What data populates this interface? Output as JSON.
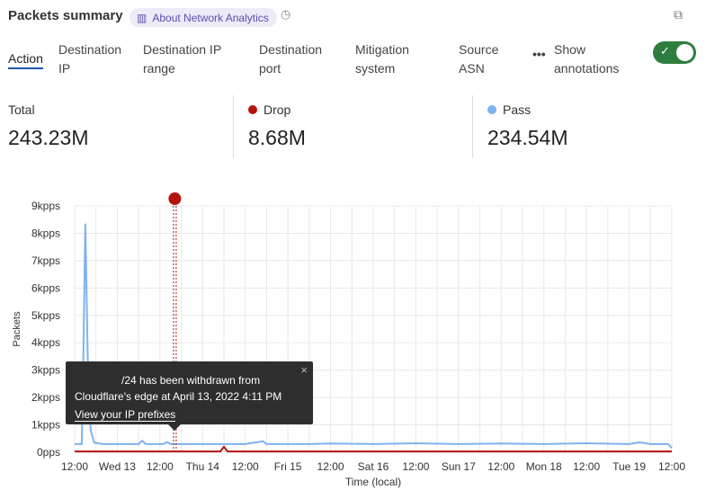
{
  "header": {
    "title": "Packets summary",
    "about_label": "About Network Analytics",
    "about_icon": "book-icon",
    "clock_icon": "clock-icon",
    "copy_icon": "copy-icon"
  },
  "tabs": [
    {
      "label": "Action",
      "active": true
    },
    {
      "label": "Destination IP"
    },
    {
      "label": "Destination IP range"
    },
    {
      "label": "Destination port"
    },
    {
      "label": "Mitigation system"
    },
    {
      "label": "Source ASN"
    }
  ],
  "more_label": "•••",
  "annotations_toggle": {
    "label": "Show annotations",
    "on": true
  },
  "stats": [
    {
      "label": "Total",
      "value": "243.23M"
    },
    {
      "label": "Drop",
      "value": "8.68M",
      "color": "#b3140c"
    },
    {
      "label": "Pass",
      "value": "234.54M",
      "color": "#7fb2f0"
    }
  ],
  "tooltip": {
    "line1": "/24 has been withdrawn from",
    "line2": "Cloudflare's edge at April 13, 2022 4:11 PM",
    "link": "View your IP prefixes",
    "close": "×"
  },
  "chart_data": {
    "type": "line",
    "xlabel": "Time (local)",
    "ylabel": "Packets",
    "ylim": [
      0,
      9
    ],
    "yticks": [
      "0pps",
      "1kpps",
      "2kpps",
      "3kpps",
      "4kpps",
      "5kpps",
      "6kpps",
      "7kpps",
      "8kpps",
      "9kpps"
    ],
    "xlim": [
      "2022-04-12T12:00",
      "2022-04-19T12:00"
    ],
    "xticks": [
      "12:00",
      "Wed 13",
      "12:00",
      "Thu 14",
      "12:00",
      "Fri 15",
      "12:00",
      "Sat 16",
      "12:00",
      "Sun 17",
      "12:00",
      "Mon 18",
      "12:00",
      "Tue 19",
      "12:00"
    ],
    "grid": true,
    "annotation_time": "2022-04-13T16:11",
    "series": [
      {
        "name": "Pass",
        "color": "#7fb2f0",
        "unit": "kpps",
        "points": [
          [
            "2022-04-12T12:00",
            0.3
          ],
          [
            "2022-04-12T14:00",
            0.3
          ],
          [
            "2022-04-12T14:30",
            4.0
          ],
          [
            "2022-04-12T15:00",
            8.35
          ],
          [
            "2022-04-12T15:45",
            3.0
          ],
          [
            "2022-04-12T16:30",
            0.8
          ],
          [
            "2022-04-12T17:30",
            0.35
          ],
          [
            "2022-04-12T20:00",
            0.3
          ],
          [
            "2022-04-13T06:00",
            0.3
          ],
          [
            "2022-04-13T07:00",
            0.42
          ],
          [
            "2022-04-13T08:00",
            0.3
          ],
          [
            "2022-04-13T13:00",
            0.3
          ],
          [
            "2022-04-13T14:00",
            0.37
          ],
          [
            "2022-04-13T15:00",
            0.3
          ],
          [
            "2022-04-14T12:00",
            0.3
          ],
          [
            "2022-04-14T17:00",
            0.4
          ],
          [
            "2022-04-14T18:00",
            0.3
          ],
          [
            "2022-04-15T06:00",
            0.3
          ],
          [
            "2022-04-15T12:00",
            0.32
          ],
          [
            "2022-04-16T00:00",
            0.3
          ],
          [
            "2022-04-16T12:00",
            0.33
          ],
          [
            "2022-04-17T00:00",
            0.3
          ],
          [
            "2022-04-17T12:00",
            0.32
          ],
          [
            "2022-04-18T00:00",
            0.3
          ],
          [
            "2022-04-18T12:00",
            0.33
          ],
          [
            "2022-04-19T00:00",
            0.3
          ],
          [
            "2022-04-19T03:00",
            0.36
          ],
          [
            "2022-04-19T06:00",
            0.3
          ],
          [
            "2022-04-19T11:00",
            0.3
          ],
          [
            "2022-04-19T12:00",
            0.15
          ]
        ]
      },
      {
        "name": "Drop",
        "color": "#b3140c",
        "unit": "kpps",
        "points": [
          [
            "2022-04-12T12:00",
            0.03
          ],
          [
            "2022-04-14T05:00",
            0.03
          ],
          [
            "2022-04-14T06:00",
            0.2
          ],
          [
            "2022-04-14T07:00",
            0.03
          ],
          [
            "2022-04-19T12:00",
            0.03
          ]
        ]
      }
    ]
  }
}
